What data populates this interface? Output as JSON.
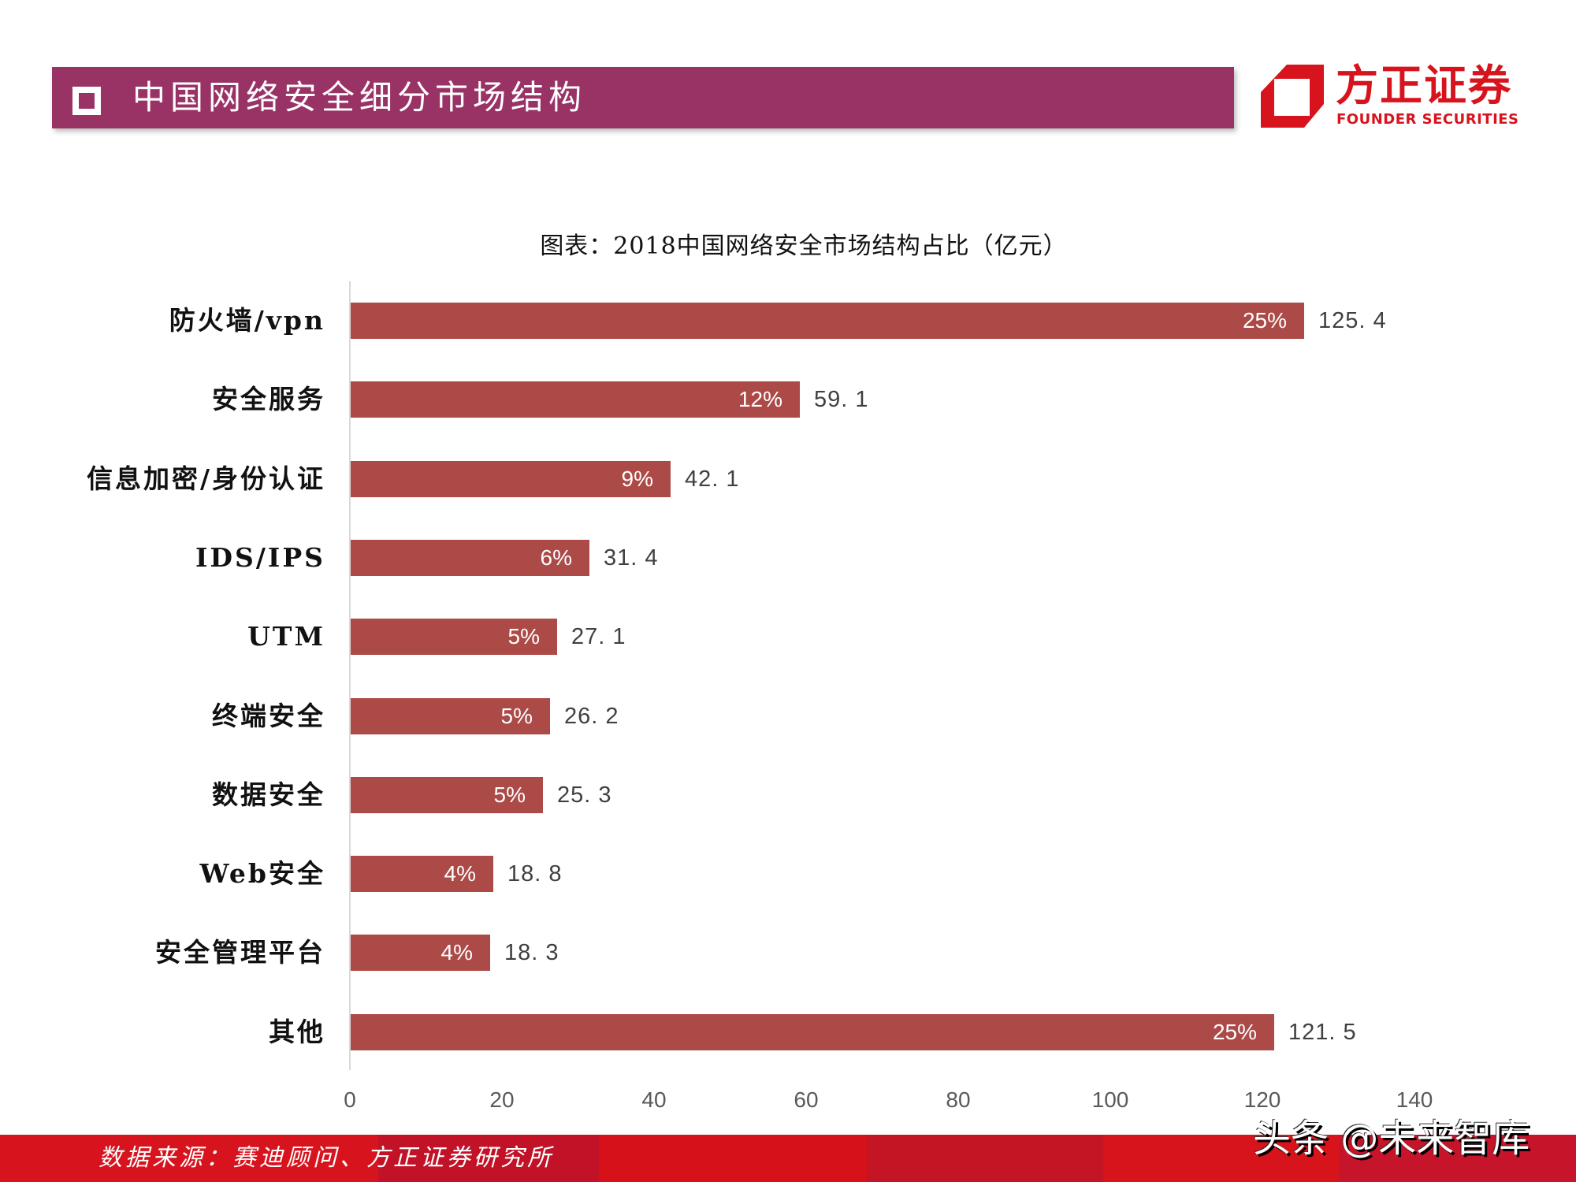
{
  "header": {
    "title": "中国网络安全细分市场结构",
    "bar_color": "#993366"
  },
  "logo": {
    "cn": "方正证券",
    "en": "FOUNDER SECURITIES",
    "color": "#D7141E"
  },
  "chart": {
    "title": "图表：2018中国网络安全市场结构占比（亿元）"
  },
  "chart_data": {
    "type": "bar",
    "orientation": "horizontal",
    "title": "图表：2018中国网络安全市场结构占比（亿元）",
    "xlabel": "",
    "ylabel": "",
    "categories": [
      "防火墙/vpn",
      "安全服务",
      "信息加密/身份认证",
      "IDS/IPS",
      "UTM",
      "终端安全",
      "数据安全",
      "Web安全",
      "安全管理平台",
      "其他"
    ],
    "values": [
      125.4,
      59.1,
      42.1,
      31.4,
      27.1,
      26.2,
      25.3,
      18.8,
      18.3,
      121.5
    ],
    "percent_labels": [
      "25%",
      "12%",
      "9%",
      "6%",
      "5%",
      "5%",
      "5%",
      "4%",
      "4%",
      "25%"
    ],
    "value_labels": [
      "125. 4",
      "59. 1",
      "42. 1",
      "31. 4",
      "27. 1",
      "26. 2",
      "25. 3",
      "18. 8",
      "18. 3",
      "121. 5"
    ],
    "xlim": [
      0,
      140
    ],
    "xticks": [
      "0",
      "20",
      "40",
      "60",
      "80",
      "100",
      "120",
      "140"
    ],
    "grid": false,
    "legend": null,
    "bar_color": "#AB4A47"
  },
  "footer": {
    "source": "数据来源：赛迪顾问、方正证券研究所",
    "watermark": "头条 @未来智库"
  }
}
